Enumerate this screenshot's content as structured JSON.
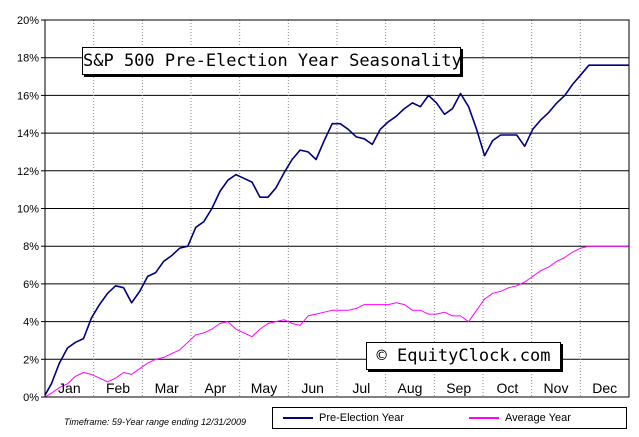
{
  "chart_data": {
    "type": "line",
    "title": "S&P 500 Pre-Election Year Seasonality",
    "watermark": "© EquityClock.com",
    "footnote": "Timeframe: 59-Year range ending 12/31/2009",
    "categories": [
      "Jan",
      "Feb",
      "Mar",
      "Apr",
      "May",
      "Jun",
      "Jul",
      "Aug",
      "Sep",
      "Oct",
      "Nov",
      "Dec"
    ],
    "y_ticks": [
      "0%",
      "2%",
      "4%",
      "6%",
      "8%",
      "10%",
      "12%",
      "14%",
      "16%",
      "18%",
      "20%"
    ],
    "ylim": [
      0,
      20
    ],
    "y_unit": "%",
    "grid": true,
    "legend_position": "bottom",
    "series": [
      {
        "name": "Pre-Election Year",
        "color": "#000080",
        "x": [
          1,
          5,
          10,
          15,
          20,
          25,
          30,
          35,
          40,
          45,
          50,
          55,
          60,
          65,
          70,
          75,
          80,
          85,
          90,
          95,
          100,
          105,
          110,
          115,
          120,
          125,
          130,
          135,
          140,
          145,
          150,
          155,
          160,
          165,
          170,
          175,
          180,
          185,
          190,
          195,
          200,
          205,
          210,
          215,
          220,
          225,
          230,
          235,
          240,
          245,
          250,
          255,
          260,
          265,
          270,
          275,
          280,
          285,
          290,
          295,
          300,
          305,
          310,
          315,
          320,
          325,
          330,
          335,
          340,
          345,
          350,
          355,
          360,
          365
        ],
        "values": [
          0.1,
          0.7,
          1.8,
          2.6,
          2.9,
          3.1,
          4.2,
          4.9,
          5.5,
          5.9,
          5.8,
          5.0,
          5.6,
          6.4,
          6.6,
          7.2,
          7.5,
          7.9,
          8.0,
          9.0,
          9.3,
          10.0,
          10.9,
          11.5,
          11.8,
          11.6,
          11.4,
          10.6,
          10.6,
          11.1,
          11.9,
          12.6,
          13.1,
          13.0,
          12.6,
          13.6,
          14.5,
          14.5,
          14.2,
          13.8,
          13.7,
          13.4,
          14.2,
          14.6,
          14.9,
          15.3,
          15.6,
          15.4,
          16.0,
          15.6,
          15.0,
          15.3,
          16.1,
          15.4,
          14.2,
          12.8,
          13.6,
          13.9,
          13.9,
          13.9,
          13.3,
          14.2,
          14.7,
          15.1,
          15.6,
          16.0,
          16.6,
          17.1,
          17.6,
          17.6,
          17.6,
          17.6,
          17.6,
          17.6
        ]
      },
      {
        "name": "Average Year",
        "color": "#ff00ff",
        "x": [
          1,
          5,
          10,
          15,
          20,
          25,
          30,
          35,
          40,
          45,
          50,
          55,
          60,
          65,
          70,
          75,
          80,
          85,
          90,
          95,
          100,
          105,
          110,
          115,
          120,
          125,
          130,
          135,
          140,
          145,
          150,
          155,
          160,
          165,
          170,
          175,
          180,
          185,
          190,
          195,
          200,
          205,
          210,
          215,
          220,
          225,
          230,
          235,
          240,
          245,
          250,
          255,
          260,
          265,
          270,
          275,
          280,
          285,
          290,
          295,
          300,
          305,
          310,
          315,
          320,
          325,
          330,
          335,
          340,
          345,
          350,
          355,
          360,
          365
        ],
        "values": [
          0.0,
          0.2,
          0.5,
          0.7,
          1.1,
          1.3,
          1.2,
          1.0,
          0.8,
          1.0,
          1.3,
          1.2,
          1.5,
          1.8,
          2.0,
          2.1,
          2.3,
          2.5,
          2.9,
          3.3,
          3.4,
          3.6,
          3.9,
          4.0,
          3.6,
          3.4,
          3.2,
          3.6,
          3.9,
          4.0,
          4.1,
          3.9,
          3.8,
          4.3,
          4.4,
          4.5,
          4.6,
          4.6,
          4.6,
          4.7,
          4.9,
          4.9,
          4.9,
          4.9,
          5.0,
          4.9,
          4.6,
          4.6,
          4.4,
          4.4,
          4.5,
          4.3,
          4.3,
          4.0,
          4.6,
          5.2,
          5.5,
          5.6,
          5.8,
          5.9,
          6.1,
          6.4,
          6.7,
          6.9,
          7.2,
          7.4,
          7.7,
          7.9,
          8.0,
          8.0,
          8.0,
          8.0,
          8.0,
          8.0
        ]
      }
    ]
  }
}
